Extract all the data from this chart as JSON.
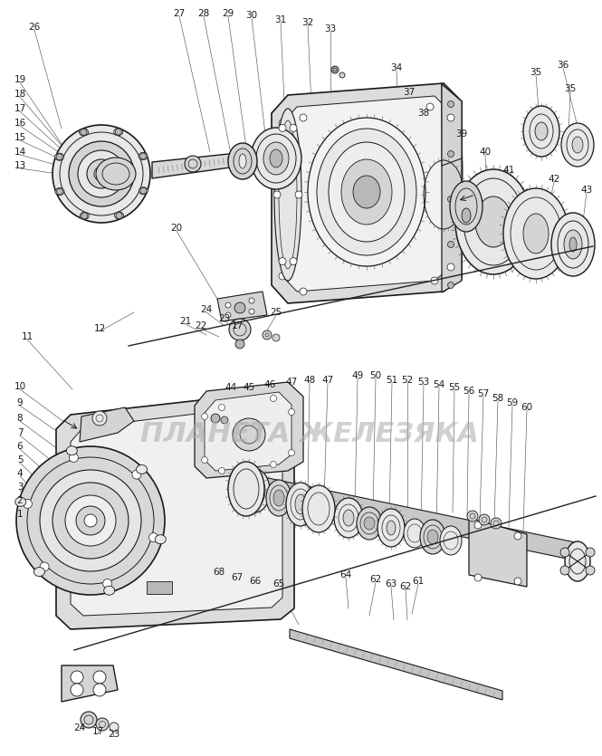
{
  "fig_width": 6.65,
  "fig_height": 8.35,
  "dpi": 100,
  "bg": "#ffffff",
  "lc": "#1a1a1a",
  "lc_thin": "#444444",
  "fl": "#e8e8e8",
  "fm": "#d4d4d4",
  "fd": "#b8b8b8",
  "fw": "#ffffff",
  "wm_text": "ПЛАНЕТА ЖЕЛЕЗЯКА",
  "wm_fs": 22,
  "wm_color": "#aaaaaa",
  "wm_alpha": 0.55,
  "lfs": 7.5
}
